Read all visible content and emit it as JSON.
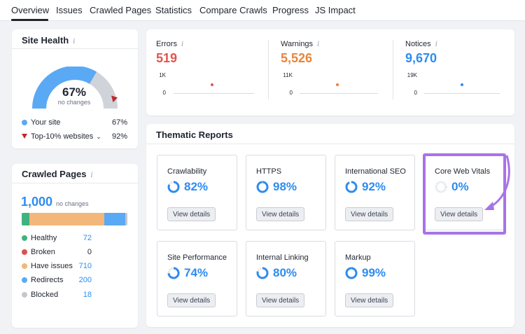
{
  "tabs": [
    "Overview",
    "Issues",
    "Crawled Pages",
    "Statistics",
    "Compare Crawls",
    "Progress",
    "JS Impact"
  ],
  "site_health": {
    "title": "Site Health",
    "value": "67%",
    "subtitle": "no changes",
    "your_site_label": "Your site",
    "your_site_value": "67%",
    "top_label": "Top-10% websites",
    "top_value": "92%",
    "gauge_fraction": 0.67,
    "top_fraction": 0.92,
    "colors": {
      "your_site": "#5aa9f5",
      "top": "#c0282d",
      "track": "#d0d3d9"
    }
  },
  "crawled_pages": {
    "title": "Crawled Pages",
    "total": "1,000",
    "subtitle": "no changes",
    "items": [
      {
        "label": "Healthy",
        "value": "72",
        "color": "#3fb37f"
      },
      {
        "label": "Broken",
        "value": "0",
        "color": "#d9534f"
      },
      {
        "label": "Have issues",
        "value": "710",
        "color": "#f4b77a"
      },
      {
        "label": "Redirects",
        "value": "200",
        "color": "#5aa9f5"
      },
      {
        "label": "Blocked",
        "value": "18",
        "color": "#c4c7cd"
      }
    ]
  },
  "metrics": [
    {
      "label": "Errors",
      "value": "519",
      "y_top": "1K",
      "y_zero": "0",
      "color": "#e5534b"
    },
    {
      "label": "Warnings",
      "value": "5,526",
      "y_top": "11K",
      "y_zero": "0",
      "color": "#e8843a"
    },
    {
      "label": "Notices",
      "value": "9,670",
      "y_top": "19K",
      "y_zero": "0",
      "color": "#2d8cf0"
    }
  ],
  "thematic": {
    "title": "Thematic Reports",
    "button_label": "View details",
    "reports": [
      {
        "name": "Crawlability",
        "value": "82%",
        "fraction": 0.82
      },
      {
        "name": "HTTPS",
        "value": "98%",
        "fraction": 0.98
      },
      {
        "name": "International SEO",
        "value": "92%",
        "fraction": 0.92
      },
      {
        "name": "Core Web Vitals",
        "value": "0%",
        "fraction": 0
      },
      {
        "name": "Site Performance",
        "value": "74%",
        "fraction": 0.74
      },
      {
        "name": "Internal Linking",
        "value": "80%",
        "fraction": 0.8
      },
      {
        "name": "Markup",
        "value": "99%",
        "fraction": 0.99
      }
    ],
    "highlight_color": "#a873e8"
  }
}
